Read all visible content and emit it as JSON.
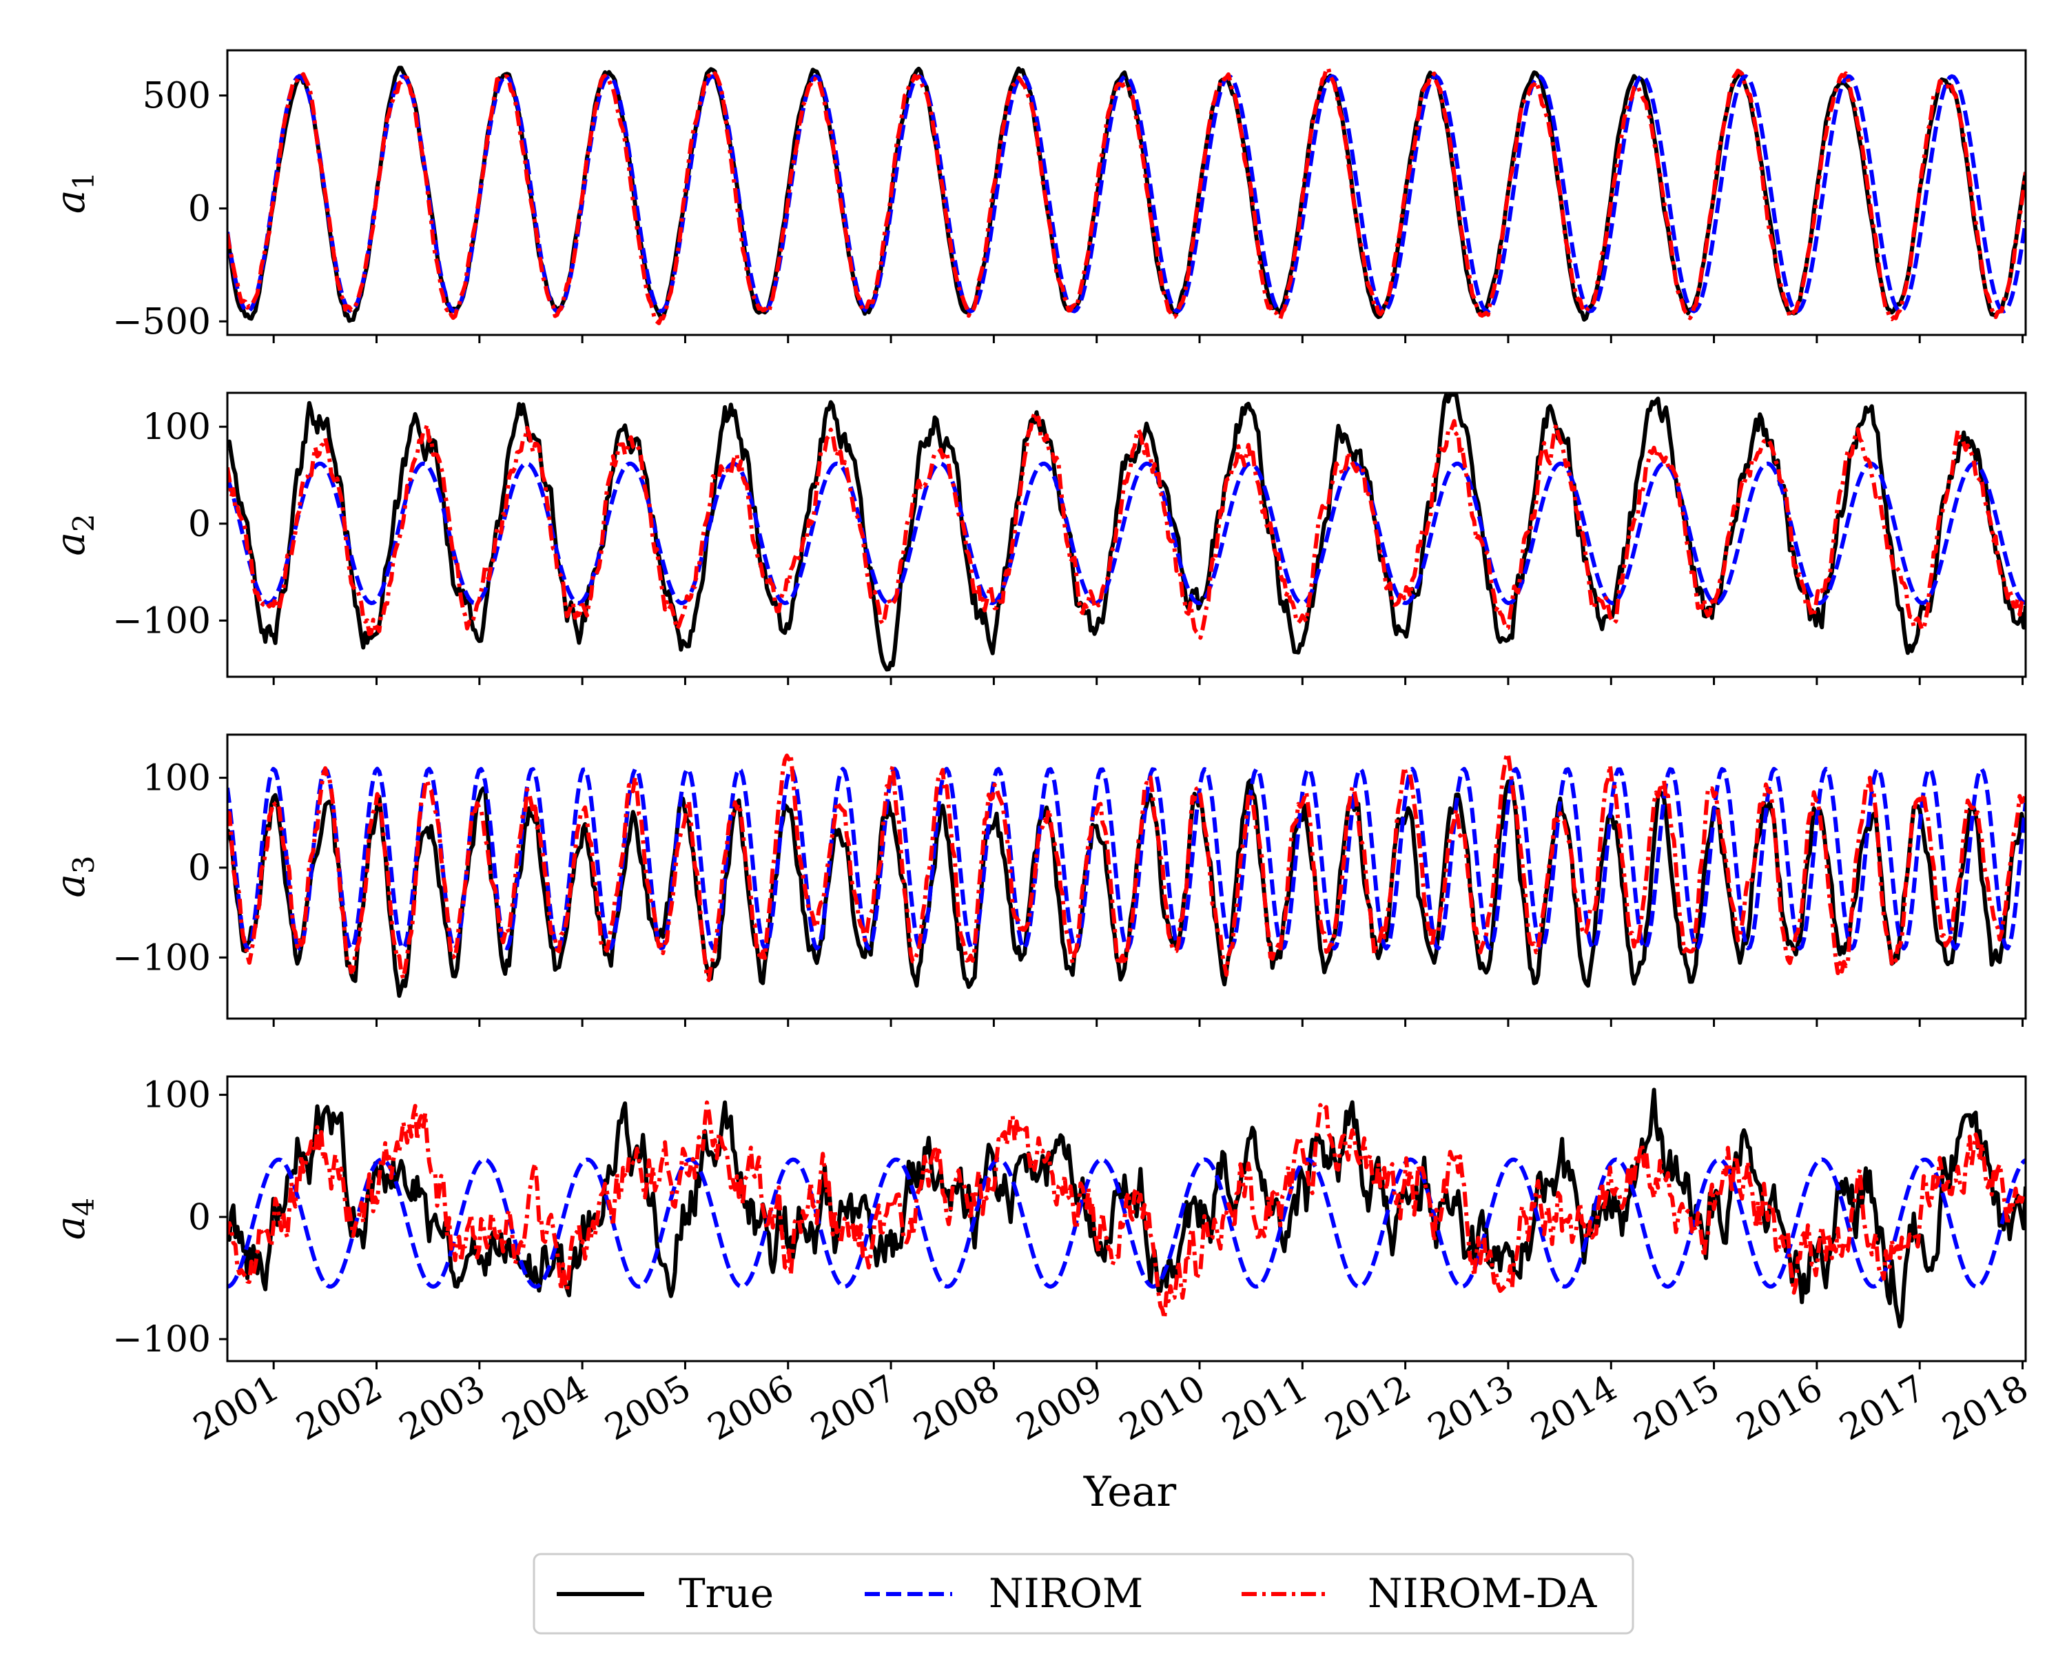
{
  "chart_data": {
    "type": "line",
    "xlabel": "Year",
    "x_tick_labels": [
      "2001",
      "2002",
      "2003",
      "2004",
      "2005",
      "2006",
      "2007",
      "2008",
      "2009",
      "2010",
      "2011",
      "2012",
      "2013",
      "2014",
      "2015",
      "2016",
      "2017",
      "2018"
    ],
    "xlim": [
      2000.55,
      2018.03
    ],
    "legend": {
      "placement": "bottom-center",
      "entries": [
        {
          "name": "True",
          "color": "#000000",
          "style": "solid"
        },
        {
          "name": "NIROM",
          "color": "#0000ff",
          "style": "dashed"
        },
        {
          "name": "NIROM-DA",
          "color": "#ff0000",
          "style": "dashdot"
        }
      ]
    },
    "panels": [
      {
        "ylabel_main": "a",
        "ylabel_sub": "1",
        "ylim": [
          -560,
          700
        ],
        "yticks": [
          -500,
          0,
          500
        ],
        "ytick_labels": [
          "−500",
          "0",
          "500"
        ],
        "series": {
          "true": {
            "period": 1.0,
            "phase": 2001.25,
            "amplitude": 530,
            "offset": 60,
            "noise": 12
          },
          "nirom": {
            "period": 1.004,
            "phase": 2001.25,
            "amplitude": 520,
            "offset": 65,
            "noise": 0
          },
          "nirom_da": {
            "period": 1.0,
            "phase": 2001.25,
            "amplitude": 525,
            "offset": 60,
            "noise": 18
          }
        }
      },
      {
        "ylabel_main": "a",
        "ylabel_sub": "2",
        "ylim": [
          -158,
          135
        ],
        "yticks": [
          -100,
          0,
          100
        ],
        "ytick_labels": [
          "−100",
          "0",
          "100"
        ],
        "series": {
          "true": {
            "period": 1.0,
            "phase": 2001.45,
            "amplitude": 105,
            "offset": 0,
            "noise": 14
          },
          "nirom": {
            "period": 1.005,
            "phase": 2001.45,
            "amplitude": 72,
            "offset": -10,
            "noise": 0
          },
          "nirom_da": {
            "period": 1.0,
            "phase": 2001.45,
            "amplitude": 85,
            "offset": -5,
            "noise": 12
          }
        }
      },
      {
        "ylabel_main": "a",
        "ylabel_sub": "3",
        "ylim": [
          -168,
          148
        ],
        "yticks": [
          -100,
          0,
          100
        ],
        "ytick_labels": [
          "−100",
          "0",
          "100"
        ],
        "series": {
          "true": {
            "period": 0.5,
            "phase": 2001.0,
            "amplitude": 85,
            "offset": -20,
            "noise": 14
          },
          "nirom": {
            "period": 0.503,
            "phase": 2001.0,
            "amplitude": 100,
            "offset": 10,
            "noise": 0
          },
          "nirom_da": {
            "period": 0.5,
            "phase": 2001.0,
            "amplitude": 90,
            "offset": -5,
            "noise": 14
          }
        }
      },
      {
        "ylabel_main": "a",
        "ylabel_sub": "4",
        "ylim": [
          -118,
          115
        ],
        "yticks": [
          -100,
          0,
          100
        ],
        "ytick_labels": [
          "−100",
          "0",
          "100"
        ],
        "series": {
          "true": {
            "period": 1.0,
            "phase": 2001.0,
            "amplitude": 30,
            "offset": 10,
            "noise": 20
          },
          "nirom": {
            "period": 1.0,
            "phase": 2001.05,
            "amplitude": 52,
            "offset": -5,
            "noise": 0
          },
          "nirom_da": {
            "period": 1.0,
            "phase": 2001.0,
            "amplitude": 30,
            "offset": 10,
            "noise": 18
          }
        }
      }
    ]
  }
}
